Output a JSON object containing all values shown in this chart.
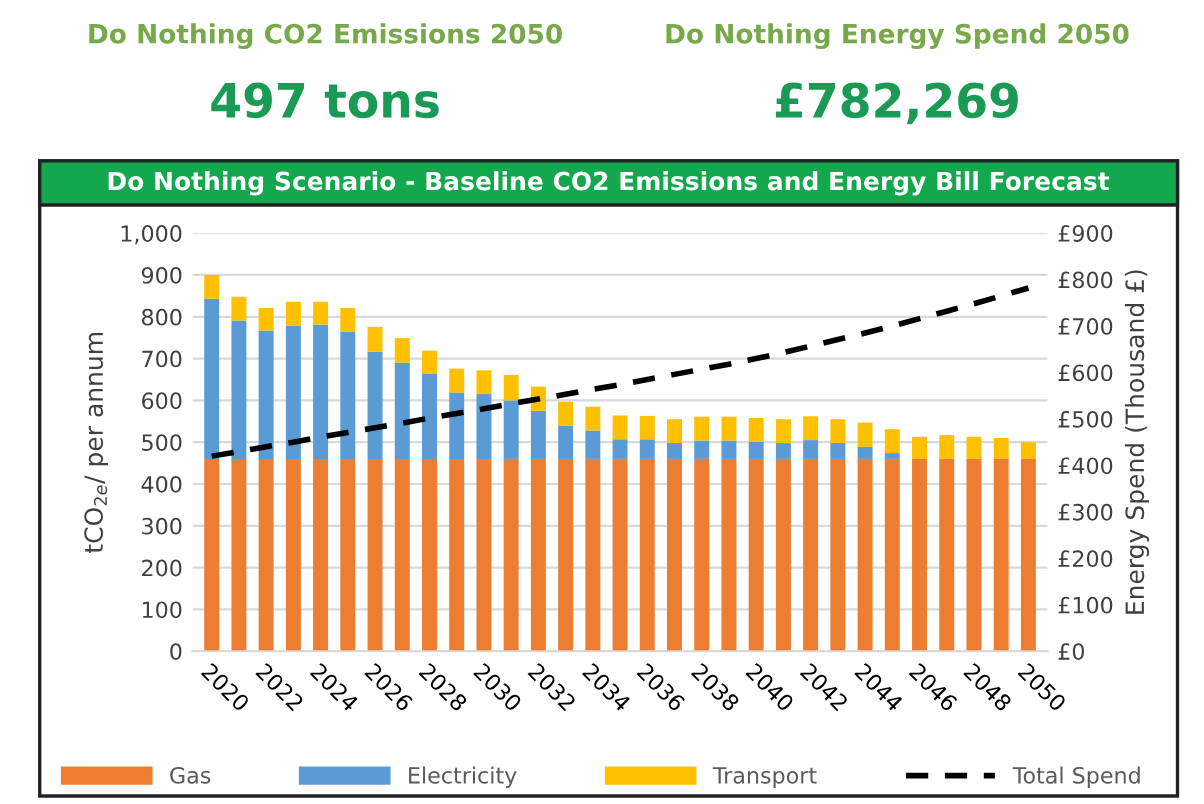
{
  "chart_data": {
    "type": "bar",
    "stacked": true,
    "title": "Do Nothing Scenario - Baseline CO2 Emissions and Energy Bill Forecast",
    "annotations": [
      "Do Nothing CO2 Emissions 2050",
      "497 tons",
      "Do Nothing Energy Spend 2050",
      "£782,269"
    ],
    "categories": [
      "2020",
      null,
      "2022",
      null,
      "2024",
      null,
      "2026",
      null,
      "2028",
      null,
      "2030",
      null,
      "2032",
      null,
      "2034",
      null,
      "2036",
      null,
      "2038",
      null,
      "2040",
      null,
      "2042",
      null,
      "2044",
      null,
      "2046",
      null,
      "2048",
      null,
      "2050"
    ],
    "ylabel": "tCO$_{2e}$/ per annum",
    "y2label": "Energy Spend (Thousand £)",
    "ylim": [
      0,
      1000
    ],
    "yticks": [
      0,
      100,
      200,
      300,
      400,
      500,
      600,
      700,
      800,
      900,
      {
        "value": 1000,
        "label": "1,000"
      }
    ],
    "y2lim": [
      0,
      900
    ],
    "y2ticks": [
      {
        "value": 0,
        "label": "£0"
      },
      {
        "value": 100,
        "label": "£100"
      },
      {
        "value": 200,
        "label": "£200"
      },
      {
        "value": 300,
        "label": "£300"
      },
      {
        "value": 400,
        "label": "£400"
      },
      {
        "value": 500,
        "label": "£500"
      },
      {
        "value": 600,
        "label": "£600"
      },
      {
        "value": 700,
        "label": "£700"
      },
      {
        "value": 800,
        "label": "£800"
      },
      {
        "value": 900,
        "label": "£900"
      }
    ],
    "grid": "y",
    "legend": "bottom",
    "series": [
      {
        "name": "Gas",
        "color": "#ed7d31",
        "values": [
          460,
          460,
          460,
          460,
          460,
          460,
          460,
          460,
          460,
          460,
          460,
          460,
          460,
          460,
          460,
          460,
          460,
          460,
          460,
          460,
          460,
          460,
          460,
          460,
          460,
          460,
          460,
          460,
          460,
          460,
          460
        ]
      },
      {
        "name": "Electricity",
        "color": "#5b9bd5",
        "values": [
          383,
          331,
          307,
          319,
          321,
          304,
          256,
          230,
          203,
          159,
          155,
          140,
          115,
          80,
          68,
          47,
          47,
          38,
          44,
          44,
          41,
          38,
          45,
          38,
          29,
          14,
          0,
          0,
          0,
          0,
          0
        ]
      },
      {
        "name": "Transport",
        "color": "#ffc000",
        "values": [
          57,
          57,
          54,
          57,
          55,
          57,
          60,
          59,
          56,
          57,
          57,
          61,
          58,
          57,
          57,
          57,
          56,
          57,
          57,
          57,
          57,
          57,
          57,
          57,
          58,
          57,
          53,
          57,
          53,
          50,
          40
        ]
      },
      {
        "name": "Total Spend",
        "type": "line",
        "axis": "y2",
        "color": "#000000",
        "line_style": "dashed",
        "marker": "none",
        "values": [
          420,
          430,
          440,
          450,
          461,
          471,
          481,
          491,
          502,
          512,
          522,
          533,
          543,
          553,
          564,
          574,
          585,
          596,
          607,
          618,
          630,
          643,
          657,
          671,
          685,
          700,
          716,
          732,
          748,
          765,
          782
        ]
      }
    ]
  }
}
